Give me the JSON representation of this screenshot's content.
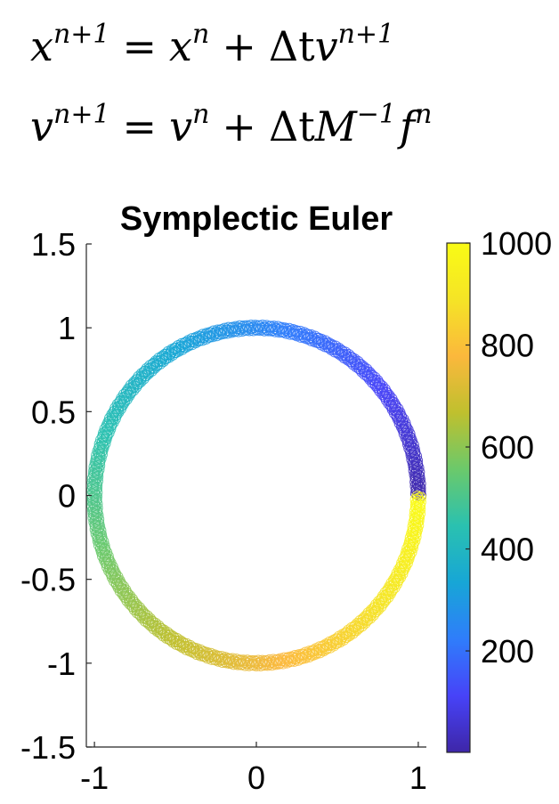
{
  "equations": [
    {
      "lhs_var": "x",
      "lhs_sup": "n+1",
      "rhs_var": "x",
      "rhs_sup": "n",
      "dt": "Δt",
      "term": "v",
      "term_sup": "n+1",
      "factor": "",
      "factor_sup": ""
    },
    {
      "lhs_var": "v",
      "lhs_sup": "n+1",
      "rhs_var": "v",
      "rhs_sup": "n",
      "dt": "Δt",
      "factor": "M",
      "factor_sup": "−1",
      "term": "f",
      "term_sup": "n"
    }
  ],
  "chart_data": {
    "type": "scatter",
    "title": "Symplectic Euler",
    "xlabel": "",
    "ylabel": "",
    "xlim": [
      -1.05,
      1.05
    ],
    "ylim": [
      -1.5,
      1.5
    ],
    "x_ticks": [
      "-1",
      "0",
      "1"
    ],
    "x_tick_values": [
      -1,
      0,
      1
    ],
    "y_ticks": [
      "1.5",
      "1",
      "0.5",
      "0",
      "-0.5",
      "-1",
      "-1.5"
    ],
    "y_tick_values": [
      1.5,
      1,
      0.5,
      0,
      -0.5,
      -1,
      -1.5
    ],
    "grid": false,
    "marker": "open-circle",
    "series": [
      {
        "x_formula": "cos(2*pi*t/1000)",
        "y_formula": "sin(2*pi*t/1000)",
        "t_range": [
          1,
          1000
        ],
        "radius": 1.0,
        "color_by": "t"
      }
    ],
    "colorbar": {
      "colormap": "parula",
      "range": [
        1,
        1000
      ],
      "ticks": [
        "1000",
        "800",
        "600",
        "400",
        "200"
      ],
      "tick_values": [
        1000,
        800,
        600,
        400,
        200
      ],
      "colors": [
        "#3e26a8",
        "#4743f8",
        "#2f7dfb",
        "#17a6d6",
        "#2ac1b0",
        "#6bc96b",
        "#bfc02e",
        "#fbb83c",
        "#f5e426",
        "#f9fb15"
      ]
    }
  }
}
